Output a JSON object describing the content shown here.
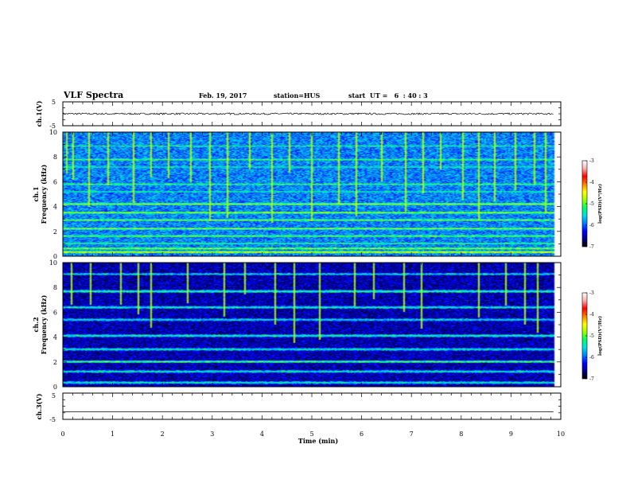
{
  "header": {
    "title": "VLF Spectra",
    "date": "Feb. 19, 2017",
    "station": "station=HUS",
    "start": "start  UT =   6  : 40 : 3"
  },
  "chart_data": {
    "type": "heatmap",
    "x": {
      "label": "Time  (min)",
      "range": [
        0,
        10
      ],
      "ticks": [
        "0",
        "1",
        "2",
        "3",
        "4",
        "5",
        "6",
        "7",
        "8",
        "9",
        "10"
      ]
    },
    "panels": [
      {
        "id": "ch1-waveform",
        "type": "line",
        "ylabel": "ch.1(V)",
        "ylim": [
          -5,
          5
        ],
        "ytick_labels": [
          "5",
          "-5"
        ],
        "level": 0,
        "noise": 0.35
      },
      {
        "id": "ch1-spectrogram",
        "ylabel_top": "ch.1",
        "ylabel": "Frequency  (kHz)",
        "ylim": [
          0,
          10
        ],
        "ytick_labels": [
          "0",
          "2",
          "4",
          "6",
          "8",
          "10"
        ],
        "bands": [
          {
            "f": 0.3,
            "level": 0.68
          },
          {
            "f": 0.6,
            "level": 0.6
          },
          {
            "f": 1.0,
            "level": 0.5
          },
          {
            "f": 1.6,
            "level": 0.55
          },
          {
            "f": 2.2,
            "level": 0.58
          },
          {
            "f": 2.9,
            "level": 0.55
          },
          {
            "f": 3.5,
            "level": 0.6
          },
          {
            "f": 4.2,
            "level": 0.6
          },
          {
            "f": 5.2,
            "level": 0.45
          },
          {
            "f": 5.8,
            "level": 0.5
          },
          {
            "f": 7.2,
            "level": 0.45
          },
          {
            "f": 7.8,
            "level": 0.5
          },
          {
            "f": 8.9,
            "level": 0.45
          }
        ],
        "spikes": [
          0.05,
          0.18,
          0.5,
          0.9,
          1.4,
          1.75,
          2.1,
          2.55,
          2.95,
          3.3,
          3.75,
          4.2,
          4.55,
          5.0,
          5.55,
          5.9,
          6.4,
          6.9,
          7.25,
          7.6,
          8.05,
          8.35,
          8.7,
          9.1,
          9.5,
          9.7
        ]
      },
      {
        "id": "ch2-spectrogram",
        "ylabel_top": "ch.2",
        "ylabel": "Frequency  (kHz)",
        "ylim": [
          0,
          10
        ],
        "ytick_labels": [
          "0",
          "2",
          "4",
          "6",
          "8",
          "10"
        ],
        "bands": [
          {
            "f": 0.3,
            "level": 0.45
          },
          {
            "f": 1.2,
            "level": 0.45
          },
          {
            "f": 2.0,
            "level": 0.5
          },
          {
            "f": 3.0,
            "level": 0.45
          },
          {
            "f": 4.1,
            "level": 0.48
          },
          {
            "f": 5.4,
            "level": 0.42
          },
          {
            "f": 6.4,
            "level": 0.45
          },
          {
            "f": 7.7,
            "level": 0.5
          },
          {
            "f": 9.1,
            "level": 0.4
          }
        ],
        "spikes": [
          0.15,
          0.55,
          1.15,
          1.5,
          1.75,
          2.5,
          3.25,
          3.65,
          4.25,
          4.65,
          5.15,
          5.85,
          6.25,
          6.85,
          7.2,
          8.35,
          8.9,
          9.3,
          9.55
        ]
      },
      {
        "id": "ch3-waveform",
        "type": "line",
        "ylabel": "ch.3(V)",
        "ylim": [
          -5,
          5
        ],
        "ytick_labels": [
          "5",
          "-5"
        ],
        "level": -2.1,
        "noise": 0
      }
    ],
    "colorbar": {
      "label": "log(PSD)(V²/Hz)",
      "range": [
        -7,
        -3
      ],
      "tick_labels": [
        "-3",
        "-4",
        "-5",
        "-6",
        "-7"
      ],
      "colormap": [
        "#000000",
        "#00008a",
        "#0000ff",
        "#0080ff",
        "#00e0e0",
        "#00ff60",
        "#a0ff00",
        "#ffff00",
        "#ff8000",
        "#ff0000",
        "#ffb0b0",
        "#ffffff"
      ]
    }
  }
}
